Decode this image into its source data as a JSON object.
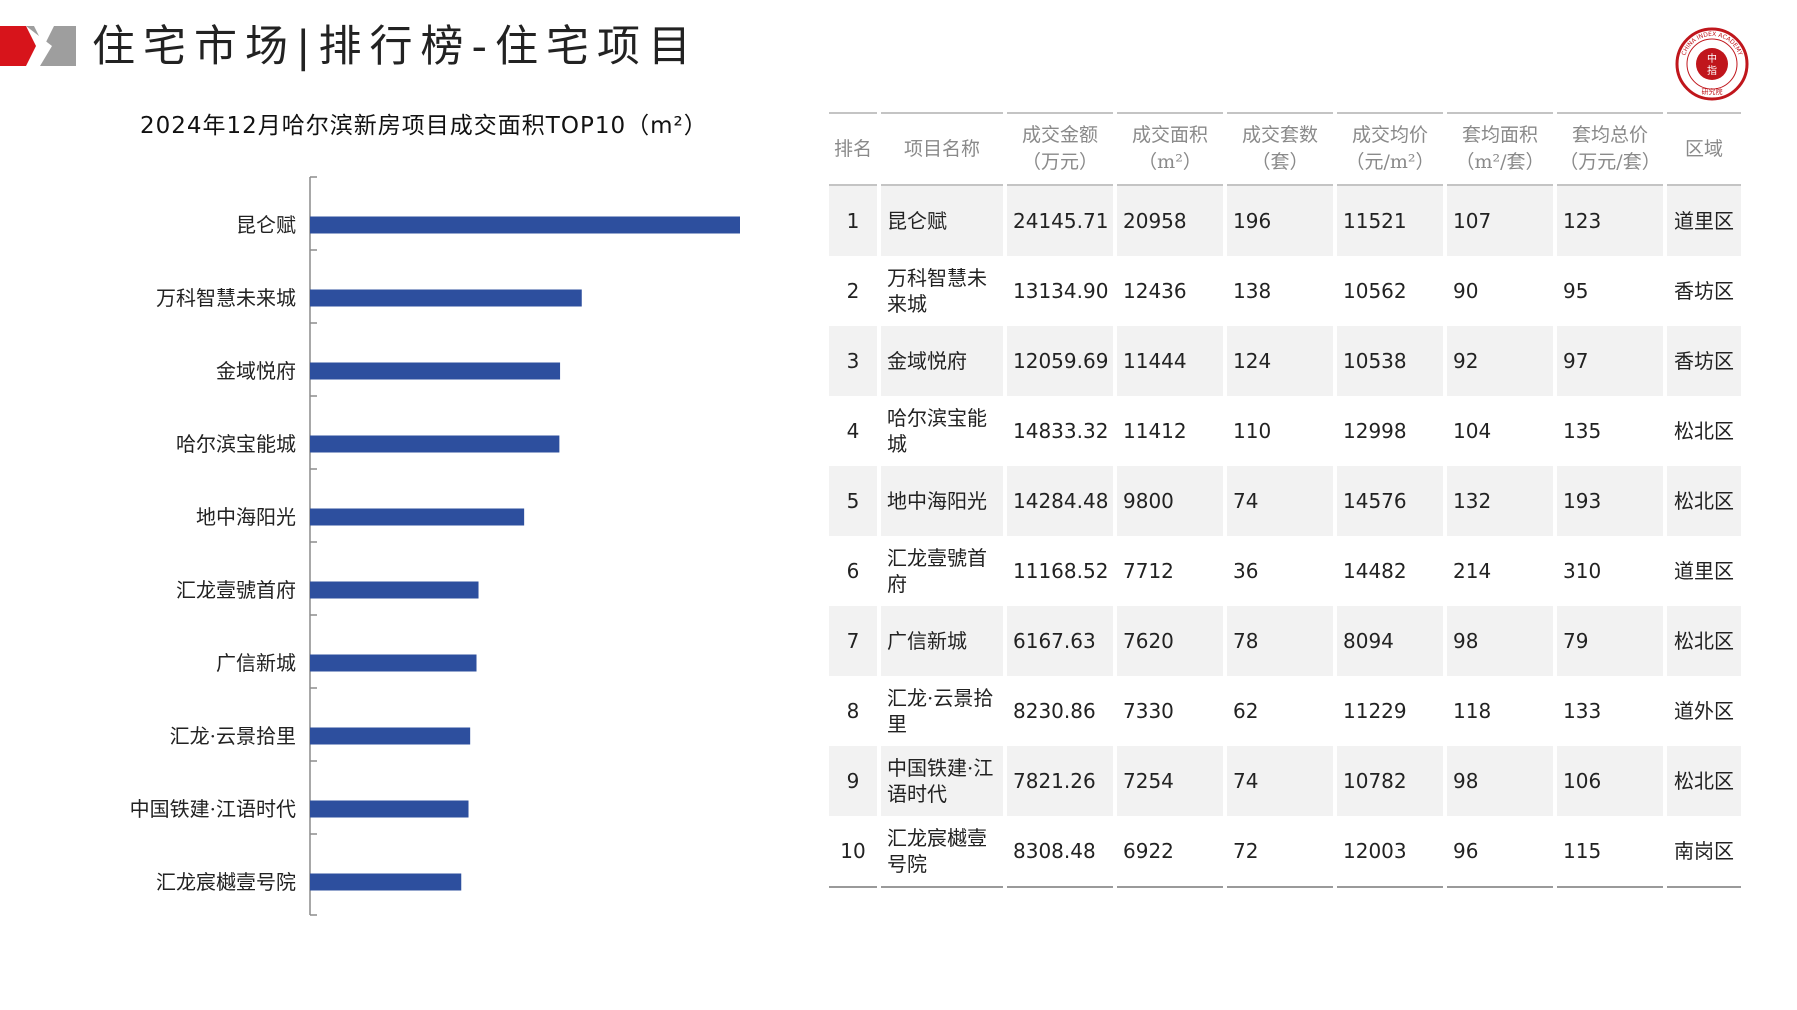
{
  "header": {
    "title": "住宅市场|排行榜-住宅项目",
    "accent_color": "#d7141b"
  },
  "logo": {
    "text_top": "中",
    "text_bottom": "指",
    "ring_text": "CHINA INDEX ACADEMY",
    "footer_text": "研究院"
  },
  "chart_title": "2024年12月哈尔滨新房项目成交面积TOP10（m²）",
  "chart_data": {
    "type": "bar",
    "orientation": "horizontal",
    "title": "2024年12月哈尔滨新房项目成交面积TOP10（m²）",
    "categories": [
      "昆仑赋",
      "万科智慧未来城",
      "金域悦府",
      "哈尔滨宝能城",
      "地中海阳光",
      "汇龙壹號首府",
      "广信新城",
      "汇龙·云景拾里",
      "中国铁建·江语时代",
      "汇龙宸樾壹号院"
    ],
    "values": [
      20958,
      12436,
      11444,
      11412,
      9800,
      7712,
      7620,
      7330,
      7254,
      6922
    ],
    "xlim": [
      0,
      27000
    ],
    "bar_color": "#2d4f9e",
    "grid": false,
    "legend": "none"
  },
  "table": {
    "headers": [
      "排名",
      "项目名称",
      "成交金额（万元）",
      "成交面积（m²）",
      "成交套数（套）",
      "成交均价（元/m²）",
      "套均面积（m²/套）",
      "套均总价（万元/套）",
      "区域"
    ],
    "rows": [
      [
        "1",
        "昆仑赋",
        "24145.71",
        "20958",
        "196",
        "11521",
        "107",
        "123",
        "道里区"
      ],
      [
        "2",
        "万科智慧未来城",
        "13134.90",
        "12436",
        "138",
        "10562",
        "90",
        "95",
        "香坊区"
      ],
      [
        "3",
        "金域悦府",
        "12059.69",
        "11444",
        "124",
        "10538",
        "92",
        "97",
        "香坊区"
      ],
      [
        "4",
        "哈尔滨宝能城",
        "14833.32",
        "11412",
        "110",
        "12998",
        "104",
        "135",
        "松北区"
      ],
      [
        "5",
        "地中海阳光",
        "14284.48",
        "9800",
        "74",
        "14576",
        "132",
        "193",
        "松北区"
      ],
      [
        "6",
        "汇龙壹號首府",
        "11168.52",
        "7712",
        "36",
        "14482",
        "214",
        "310",
        "道里区"
      ],
      [
        "7",
        "广信新城",
        "6167.63",
        "7620",
        "78",
        "8094",
        "98",
        "79",
        "松北区"
      ],
      [
        "8",
        "汇龙·云景拾里",
        "8230.86",
        "7330",
        "62",
        "11229",
        "118",
        "133",
        "道外区"
      ],
      [
        "9",
        "中国铁建·江语时代",
        "7821.26",
        "7254",
        "74",
        "10782",
        "98",
        "106",
        "松北区"
      ],
      [
        "10",
        "汇龙宸樾壹号院",
        "8308.48",
        "6922",
        "72",
        "12003",
        "96",
        "115",
        "南岗区"
      ]
    ]
  }
}
